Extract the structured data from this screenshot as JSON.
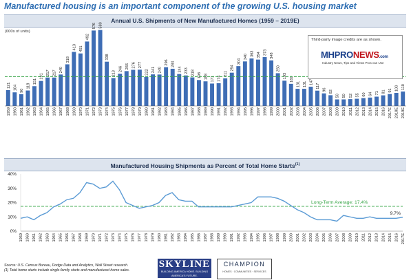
{
  "page_title": "Manufactured housing is an important component of the growing U.S. housing market",
  "credit_note": "Third-party image credits are as shown.",
  "logo": {
    "mh": "MHPRO",
    "news": "NEWS",
    "dotcom": ".com",
    "tagline": "Industry News, Tips and Views Pros can Use"
  },
  "source_line1": "Source: U.S. Census Bureau, Dodge Data and Analytics, Wall Street research.",
  "source_line2": "(1) Total home starts include single-family starts and manufactured home sales.",
  "skyline": {
    "name": "SKYLINE",
    "tagline": "BUILDING AMERICA HOME. BUILDING AMERICA'S FUTURE."
  },
  "champion": {
    "name": "CHAMPION",
    "tagline": "HOMES · COMMUNITIES · SERVICES"
  },
  "colors": {
    "bar": "#3e6db5",
    "line": "#5b9bd5",
    "avg": "#3aa64a",
    "title": "#2f6fb3"
  },
  "chart_data": [
    {
      "type": "bar",
      "title": "Annual U.S. Shipments of New Manufactured Homes (1959 – 2019E)",
      "ylabel": "(000s of units)",
      "categories": [
        "1959",
        "1960",
        "1961",
        "1962",
        "1963",
        "1964",
        "1965",
        "1966",
        "1967",
        "1968",
        "1969",
        "1970",
        "1971",
        "1972",
        "1973",
        "1974",
        "1975",
        "1976",
        "1977",
        "1978",
        "1979",
        "1980",
        "1981",
        "1982",
        "1983",
        "1984",
        "1985",
        "1986",
        "1987",
        "1988",
        "1989",
        "1990",
        "1991",
        "1992",
        "1993",
        "1994",
        "1995",
        "1996",
        "1997",
        "1998",
        "1999",
        "2000",
        "2001",
        "2002",
        "2003",
        "2004",
        "2005",
        "2006",
        "2007",
        "2008",
        "2009",
        "2010",
        "2011",
        "2012",
        "2013",
        "2014",
        "2015",
        "2016",
        "2017E",
        "2018E",
        "2019E"
      ],
      "values": [
        121,
        104,
        90,
        118,
        151,
        191,
        217,
        217,
        240,
        318,
        413,
        401,
        492,
        576,
        580,
        338,
        213,
        246,
        266,
        276,
        277,
        222,
        241,
        240,
        296,
        284,
        244,
        233,
        218,
        198,
        188,
        171,
        174,
        211,
        254,
        304,
        340,
        363,
        354,
        373,
        348,
        250,
        193,
        169,
        131,
        131,
        147,
        117,
        96,
        82,
        50,
        50,
        52,
        55,
        60,
        64,
        71,
        81,
        91,
        100,
        110
      ],
      "ylim": [
        0,
        620
      ],
      "annotation": "Long-Term Average: 224",
      "average": 224
    },
    {
      "type": "line",
      "title": "Manufactured Housing Shipments as Percent of Total Home Starts",
      "title_note": "(1)",
      "x": [
        "1959",
        "1960",
        "1961",
        "1962",
        "1963",
        "1964",
        "1965",
        "1966",
        "1967",
        "1968",
        "1969",
        "1970",
        "1971",
        "1972",
        "1973",
        "1974",
        "1975",
        "1976",
        "1977",
        "1978",
        "1979",
        "1980",
        "1981",
        "1982",
        "1983",
        "1984",
        "1985",
        "1986",
        "1987",
        "1988",
        "1989",
        "1990",
        "1991",
        "1992",
        "1993",
        "1994",
        "1995",
        "1996",
        "1997",
        "1998",
        "1999",
        "2000",
        "2001",
        "2002",
        "2003",
        "2004",
        "2005",
        "2006",
        "2007",
        "2008",
        "2009",
        "2010",
        "2011",
        "2012",
        "2013",
        "2014",
        "2015",
        "2016",
        "2017E"
      ],
      "values": [
        9,
        10,
        8,
        11,
        13,
        17,
        19,
        22,
        23,
        27,
        34,
        33,
        30,
        31,
        35,
        29,
        20,
        18,
        16,
        17,
        18,
        20,
        25,
        27,
        22,
        21,
        21,
        17,
        17,
        17,
        17,
        17,
        17,
        18,
        19,
        20,
        24,
        24,
        24,
        23,
        21,
        18,
        15,
        13,
        10,
        8,
        8,
        8,
        7,
        11,
        10,
        9,
        9,
        10,
        9,
        9,
        9,
        9,
        9.7
      ],
      "yticks": [
        "0%",
        "10%",
        "20%",
        "30%",
        "40%"
      ],
      "ylim": [
        0,
        40
      ],
      "annotation": "Long-Term Average: 17.4%",
      "average": 17.4,
      "end_label": "9.7%"
    }
  ]
}
